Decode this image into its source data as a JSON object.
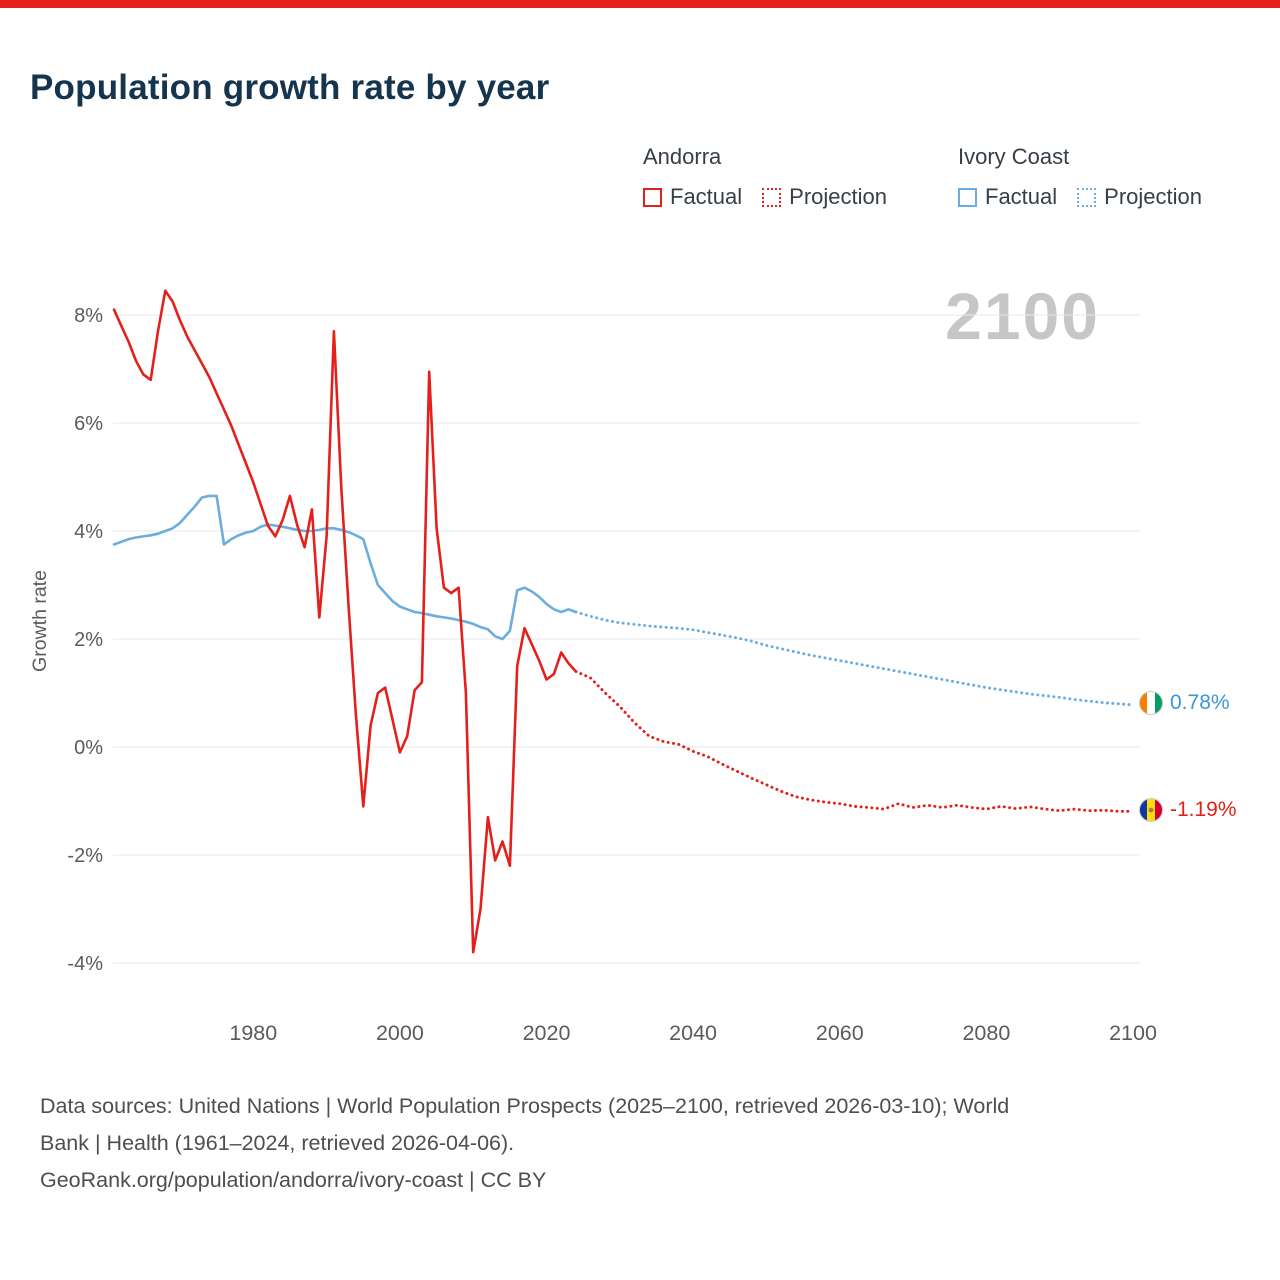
{
  "page": {
    "title": "Population growth rate by year",
    "watermark": "2100",
    "accent_red": "#e4201b",
    "accent_blue": "#6badde",
    "title_color": "#15344e"
  },
  "legend": {
    "groups": [
      {
        "name": "Andorra",
        "color": "#e4201b",
        "items": [
          {
            "label": "Factual",
            "style": "solid"
          },
          {
            "label": "Projection",
            "style": "dotted"
          }
        ]
      },
      {
        "name": "Ivory Coast",
        "color": "#6badde",
        "items": [
          {
            "label": "Factual",
            "style": "solid"
          },
          {
            "label": "Projection",
            "style": "dotted"
          }
        ]
      }
    ]
  },
  "end_labels": [
    {
      "flag": "ivory-coast",
      "label": "0.78%",
      "color": "#3d96d8"
    },
    {
      "flag": "andorra",
      "label": "-1.19%",
      "color": "#e4201b"
    }
  ],
  "footer": {
    "line1": "Data sources: United Nations | World Population Prospects (2025–2100, retrieved 2026-03-10); World",
    "line2": "Bank | Health (1961–2024, retrieved 2026-04-06).",
    "line3": "GeoRank.org/population/andorra/ivory-coast | CC BY"
  },
  "chart_data": {
    "type": "line",
    "title": "Population growth rate by year",
    "xlabel": "",
    "ylabel": "Growth rate",
    "xlim": [
      1961,
      2100
    ],
    "ylim": [
      -4.6,
      8.7
    ],
    "grid": true,
    "legend_position": "top-right",
    "yticks": [
      8,
      6,
      4,
      2,
      0,
      -2,
      -4
    ],
    "xticks": [
      1980,
      2000,
      2020,
      2040,
      2060,
      2080,
      2100
    ],
    "series": [
      {
        "id": "ivory-coast-factual",
        "name": "Ivory Coast Factual",
        "color": "#6badde",
        "style": "solid",
        "points": [
          [
            1961,
            3.75
          ],
          [
            1962,
            3.8
          ],
          [
            1963,
            3.85
          ],
          [
            1964,
            3.88
          ],
          [
            1965,
            3.9
          ],
          [
            1966,
            3.92
          ],
          [
            1967,
            3.95
          ],
          [
            1968,
            4.0
          ],
          [
            1969,
            4.05
          ],
          [
            1970,
            4.15
          ],
          [
            1971,
            4.3
          ],
          [
            1972,
            4.45
          ],
          [
            1973,
            4.62
          ],
          [
            1974,
            4.65
          ],
          [
            1975,
            4.65
          ],
          [
            1976,
            3.75
          ],
          [
            1977,
            3.85
          ],
          [
            1978,
            3.92
          ],
          [
            1979,
            3.97
          ],
          [
            1980,
            4.0
          ],
          [
            1981,
            4.08
          ],
          [
            1982,
            4.12
          ],
          [
            1983,
            4.1
          ],
          [
            1984,
            4.08
          ],
          [
            1985,
            4.05
          ],
          [
            1986,
            4.02
          ],
          [
            1987,
            4.0
          ],
          [
            1988,
            4.0
          ],
          [
            1989,
            4.02
          ],
          [
            1990,
            4.05
          ],
          [
            1991,
            4.05
          ],
          [
            1992,
            4.02
          ],
          [
            1993,
            3.98
          ],
          [
            1994,
            3.92
          ],
          [
            1995,
            3.85
          ],
          [
            1996,
            3.4
          ],
          [
            1997,
            3.0
          ],
          [
            1998,
            2.85
          ],
          [
            1999,
            2.7
          ],
          [
            2000,
            2.6
          ],
          [
            2001,
            2.55
          ],
          [
            2002,
            2.5
          ],
          [
            2003,
            2.48
          ],
          [
            2004,
            2.45
          ],
          [
            2005,
            2.42
          ],
          [
            2006,
            2.4
          ],
          [
            2007,
            2.38
          ],
          [
            2008,
            2.35
          ],
          [
            2009,
            2.32
          ],
          [
            2010,
            2.28
          ],
          [
            2011,
            2.22
          ],
          [
            2012,
            2.18
          ],
          [
            2013,
            2.05
          ],
          [
            2014,
            2.0
          ],
          [
            2015,
            2.15
          ],
          [
            2016,
            2.9
          ],
          [
            2017,
            2.95
          ],
          [
            2018,
            2.88
          ],
          [
            2019,
            2.78
          ],
          [
            2020,
            2.65
          ],
          [
            2021,
            2.55
          ],
          [
            2022,
            2.5
          ],
          [
            2023,
            2.55
          ],
          [
            2024,
            2.5
          ]
        ]
      },
      {
        "id": "ivory-coast-projection",
        "name": "Ivory Coast Projection",
        "color": "#6badde",
        "style": "dotted",
        "points": [
          [
            2024,
            2.5
          ],
          [
            2026,
            2.42
          ],
          [
            2028,
            2.35
          ],
          [
            2030,
            2.3
          ],
          [
            2032,
            2.27
          ],
          [
            2034,
            2.24
          ],
          [
            2036,
            2.22
          ],
          [
            2038,
            2.2
          ],
          [
            2040,
            2.17
          ],
          [
            2042,
            2.12
          ],
          [
            2044,
            2.07
          ],
          [
            2046,
            2.02
          ],
          [
            2048,
            1.96
          ],
          [
            2050,
            1.88
          ],
          [
            2052,
            1.82
          ],
          [
            2054,
            1.76
          ],
          [
            2056,
            1.7
          ],
          [
            2058,
            1.65
          ],
          [
            2060,
            1.6
          ],
          [
            2062,
            1.55
          ],
          [
            2064,
            1.5
          ],
          [
            2066,
            1.45
          ],
          [
            2068,
            1.4
          ],
          [
            2070,
            1.35
          ],
          [
            2072,
            1.3
          ],
          [
            2074,
            1.25
          ],
          [
            2076,
            1.2
          ],
          [
            2078,
            1.15
          ],
          [
            2080,
            1.1
          ],
          [
            2082,
            1.06
          ],
          [
            2084,
            1.02
          ],
          [
            2086,
            0.98
          ],
          [
            2088,
            0.95
          ],
          [
            2090,
            0.92
          ],
          [
            2092,
            0.88
          ],
          [
            2094,
            0.85
          ],
          [
            2096,
            0.82
          ],
          [
            2098,
            0.8
          ],
          [
            2100,
            0.78
          ]
        ]
      },
      {
        "id": "andorra-factual",
        "name": "Andorra Factual",
        "color": "#e4201b",
        "style": "solid",
        "points": [
          [
            1961,
            8.1
          ],
          [
            1962,
            7.8
          ],
          [
            1963,
            7.5
          ],
          [
            1964,
            7.15
          ],
          [
            1965,
            6.9
          ],
          [
            1966,
            6.8
          ],
          [
            1967,
            7.7
          ],
          [
            1968,
            8.45
          ],
          [
            1969,
            8.25
          ],
          [
            1970,
            7.9
          ],
          [
            1971,
            7.6
          ],
          [
            1972,
            7.35
          ],
          [
            1973,
            7.1
          ],
          [
            1974,
            6.85
          ],
          [
            1975,
            6.55
          ],
          [
            1976,
            6.25
          ],
          [
            1977,
            5.95
          ],
          [
            1978,
            5.6
          ],
          [
            1979,
            5.25
          ],
          [
            1980,
            4.9
          ],
          [
            1981,
            4.5
          ],
          [
            1982,
            4.1
          ],
          [
            1983,
            3.9
          ],
          [
            1984,
            4.2
          ],
          [
            1985,
            4.65
          ],
          [
            1986,
            4.1
          ],
          [
            1987,
            3.7
          ],
          [
            1988,
            4.4
          ],
          [
            1989,
            2.4
          ],
          [
            1990,
            3.9
          ],
          [
            1991,
            7.7
          ],
          [
            1992,
            4.8
          ],
          [
            1993,
            2.6
          ],
          [
            1994,
            0.6
          ],
          [
            1995,
            -1.1
          ],
          [
            1996,
            0.4
          ],
          [
            1997,
            1.0
          ],
          [
            1998,
            1.1
          ],
          [
            1999,
            0.5
          ],
          [
            2000,
            -0.1
          ],
          [
            2001,
            0.2
          ],
          [
            2002,
            1.05
          ],
          [
            2003,
            1.2
          ],
          [
            2004,
            6.95
          ],
          [
            2005,
            4.05
          ],
          [
            2006,
            2.95
          ],
          [
            2007,
            2.85
          ],
          [
            2008,
            2.95
          ],
          [
            2009,
            1.0
          ],
          [
            2010,
            -3.8
          ],
          [
            2011,
            -3.0
          ],
          [
            2012,
            -1.3
          ],
          [
            2013,
            -2.1
          ],
          [
            2014,
            -1.75
          ],
          [
            2015,
            -2.2
          ],
          [
            2016,
            1.5
          ],
          [
            2017,
            2.2
          ],
          [
            2018,
            1.9
          ],
          [
            2019,
            1.6
          ],
          [
            2020,
            1.25
          ],
          [
            2021,
            1.35
          ],
          [
            2022,
            1.75
          ],
          [
            2023,
            1.55
          ],
          [
            2024,
            1.4
          ]
        ]
      },
      {
        "id": "andorra-projection",
        "name": "Andorra Projection",
        "color": "#e4201b",
        "style": "dotted",
        "points": [
          [
            2024,
            1.4
          ],
          [
            2026,
            1.28
          ],
          [
            2028,
            1.0
          ],
          [
            2030,
            0.75
          ],
          [
            2032,
            0.45
          ],
          [
            2034,
            0.2
          ],
          [
            2036,
            0.1
          ],
          [
            2038,
            0.05
          ],
          [
            2040,
            -0.08
          ],
          [
            2042,
            -0.18
          ],
          [
            2044,
            -0.32
          ],
          [
            2046,
            -0.45
          ],
          [
            2048,
            -0.58
          ],
          [
            2050,
            -0.7
          ],
          [
            2052,
            -0.82
          ],
          [
            2054,
            -0.92
          ],
          [
            2056,
            -0.98
          ],
          [
            2058,
            -1.02
          ],
          [
            2060,
            -1.05
          ],
          [
            2062,
            -1.1
          ],
          [
            2064,
            -1.12
          ],
          [
            2066,
            -1.15
          ],
          [
            2068,
            -1.05
          ],
          [
            2070,
            -1.12
          ],
          [
            2072,
            -1.08
          ],
          [
            2074,
            -1.12
          ],
          [
            2076,
            -1.08
          ],
          [
            2078,
            -1.12
          ],
          [
            2080,
            -1.15
          ],
          [
            2082,
            -1.1
          ],
          [
            2084,
            -1.14
          ],
          [
            2086,
            -1.11
          ],
          [
            2088,
            -1.15
          ],
          [
            2090,
            -1.18
          ],
          [
            2092,
            -1.15
          ],
          [
            2094,
            -1.18
          ],
          [
            2096,
            -1.17
          ],
          [
            2098,
            -1.19
          ],
          [
            2100,
            -1.19
          ]
        ]
      }
    ]
  }
}
